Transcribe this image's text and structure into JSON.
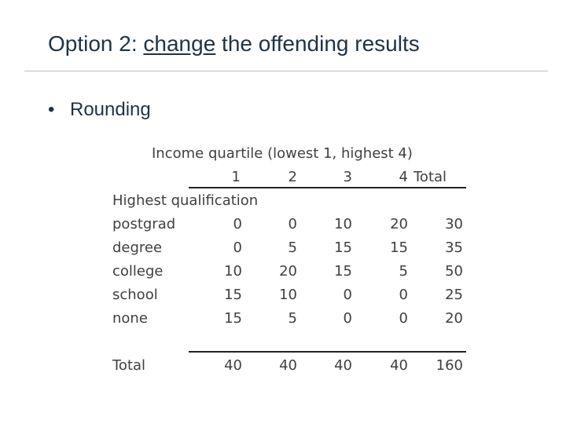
{
  "slide": {
    "title_prefix": "Option 2: ",
    "title_underlined": "change",
    "title_suffix": " the offending results",
    "bullet_text": "Rounding"
  },
  "table": {
    "caption": "Income quartile (lowest 1,  highest 4)",
    "column_headers": [
      "1",
      "2",
      "3",
      "4",
      "Total"
    ],
    "row_group_label": "Highest qualification",
    "rows": [
      {
        "label": "postgrad",
        "values": [
          "0",
          "0",
          "10",
          "20",
          "30"
        ]
      },
      {
        "label": "degree",
        "values": [
          "0",
          "5",
          "15",
          "15",
          "35"
        ]
      },
      {
        "label": "college",
        "values": [
          "10",
          "20",
          "15",
          "5",
          "50"
        ]
      },
      {
        "label": "school",
        "values": [
          "15",
          "10",
          "0",
          "0",
          "25"
        ]
      },
      {
        "label": "none",
        "values": [
          "15",
          "5",
          "0",
          "0",
          "20"
        ]
      }
    ],
    "total_row": {
      "label": "Total",
      "values": [
        "40",
        "40",
        "40",
        "40",
        "160"
      ]
    }
  }
}
